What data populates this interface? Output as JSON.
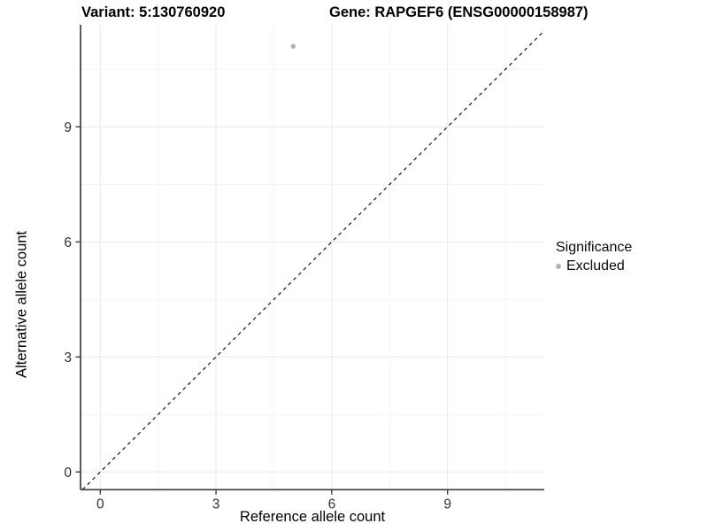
{
  "titles": {
    "left": "Variant: 5:130760920",
    "right": "Gene: RAPGEF6 (ENSG00000158987)"
  },
  "chart_data": {
    "type": "scatter",
    "title_left": "Variant: 5:130760920",
    "title_right": "Gene: RAPGEF6 (ENSG00000158987)",
    "xlabel": "Reference allele count",
    "ylabel": "Alternative allele count",
    "x_ticks": [
      0,
      3,
      6,
      9
    ],
    "y_ticks": [
      0,
      3,
      6,
      9
    ],
    "x_minor": [
      1.5,
      4.5,
      7.5,
      10.5
    ],
    "y_minor": [
      1.5,
      4.5,
      7.5,
      10.5
    ],
    "xlim": [
      -0.51,
      11.51
    ],
    "ylim": [
      -0.46,
      11.66
    ],
    "grid": true,
    "points": [
      {
        "x": 5,
        "y": 11.1,
        "series": "Excluded"
      }
    ],
    "reference_line": {
      "slope": 1,
      "intercept": 0,
      "style": "dashed"
    },
    "legend": {
      "position": "right",
      "title": "Significance",
      "items": [
        {
          "label": "Excluded",
          "color": "#b2b2b2",
          "marker": "circle"
        }
      ]
    },
    "colors": {
      "point": "#b2b2b2",
      "grid_major": "#e9e9e9",
      "grid_minor": "#f4f4f4",
      "axis": "#3d3d3d",
      "dashed_line": "#111111",
      "tick_label": "#333333"
    }
  }
}
